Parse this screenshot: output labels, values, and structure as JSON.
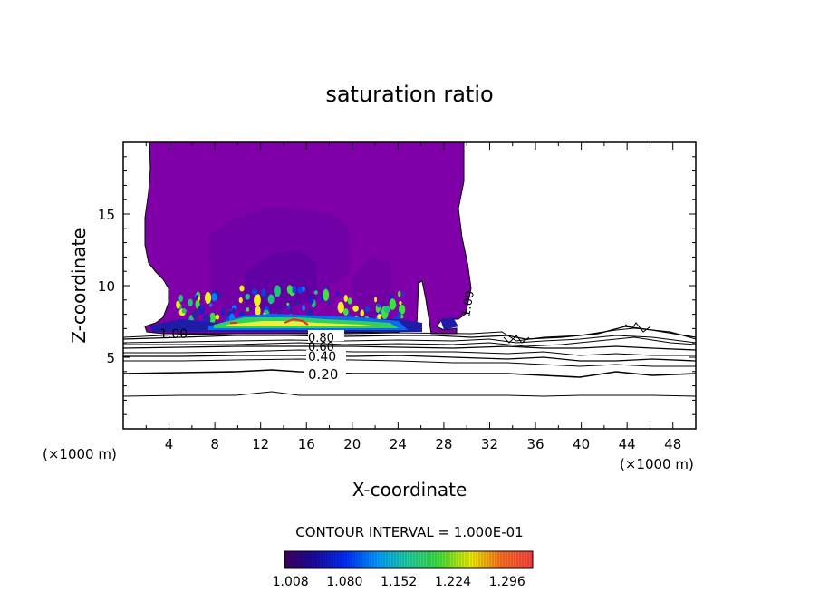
{
  "chart_data": {
    "type": "contour",
    "title": "saturation ratio",
    "xlabel": "X-coordinate",
    "ylabel": "Z-coordinate",
    "x_unit_label": "(×1000 m)",
    "x_unit_label_right": "(×1000 m)",
    "xlim": [
      0,
      50
    ],
    "ylim": [
      0,
      20
    ],
    "x_ticks": [
      "4",
      "8",
      "12",
      "16",
      "20",
      "24",
      "28",
      "32",
      "36",
      "40",
      "44",
      "48"
    ],
    "y_ticks": [
      "5",
      "10",
      "15"
    ],
    "contour_interval_text": "CONTOUR INTERVAL = 1.000E-01",
    "contour_labels": [
      "1.00",
      "0.80",
      "0.60",
      "0.40",
      "0.20",
      "1.00"
    ],
    "contour_levels": [
      1.0,
      0.8,
      0.6,
      0.4,
      0.2
    ],
    "colorbar_ticks": [
      "1.008",
      "1.080",
      "1.152",
      "1.224",
      "1.296"
    ],
    "colorbar_range": [
      1.0,
      1.33
    ],
    "supersaturated_region": {
      "x_range": [
        2.5,
        30.5
      ],
      "base_z": 6.8,
      "top_z": 20,
      "fill_value": 1.008
    },
    "colors": {
      "base_fill": "#7f00a8",
      "frame": "#000000",
      "contour": "#000000"
    }
  }
}
